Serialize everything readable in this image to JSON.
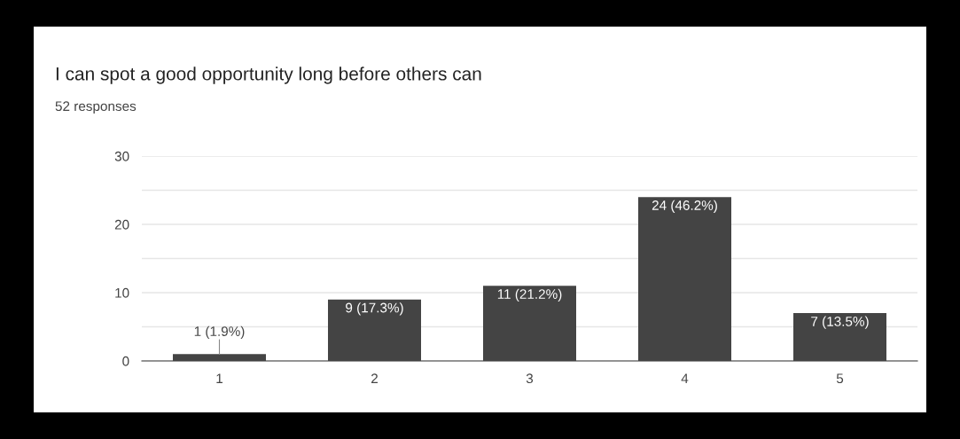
{
  "chart_data": {
    "type": "bar",
    "title": "I can spot a good opportunity long before others can",
    "subtitle": "52 responses",
    "categories": [
      "1",
      "2",
      "3",
      "4",
      "5"
    ],
    "values": [
      1,
      9,
      11,
      24,
      7
    ],
    "value_labels": [
      "1 (1.9%)",
      "9 (17.3%)",
      "11 (21.2%)",
      "24 (46.2%)",
      "7 (13.5%)"
    ],
    "color": "#444444",
    "ylim": [
      0,
      30
    ],
    "yticks": [
      0,
      {
        "value": 5,
        "label": null
      },
      10,
      {
        "value": 15,
        "label": null
      },
      20,
      {
        "value": 25,
        "label": null
      },
      30
    ],
    "grid": "y",
    "legend": false
  }
}
